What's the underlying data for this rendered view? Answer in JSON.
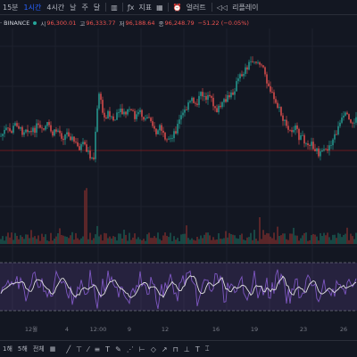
{
  "toolbar": {
    "intervals": [
      "15분",
      "1시간",
      "4시간",
      "날",
      "주",
      "달"
    ],
    "active_interval": "1시간",
    "indicators_label": "지표",
    "alert_label": "얼러트",
    "replay_label": "리플레이"
  },
  "legend": {
    "symbol": "· BINANCE",
    "open_label": "시",
    "open_value": "96,300.01",
    "high_label": "고",
    "high_value": "96,333.77",
    "low_label": "저",
    "low_value": "96,188.64",
    "close_label": "종",
    "close_value": "96,248.79",
    "change": "−51.22 (−0.05%)"
  },
  "chart_data": {
    "type": "candlestick",
    "x_ticks": [
      "12월",
      "4",
      "12:00",
      "9",
      "12",
      "16",
      "19",
      "23",
      "26"
    ],
    "price_path": [
      0.73,
      0.68,
      0.7,
      0.62,
      0.7,
      0.66,
      0.71,
      0.65,
      0.7,
      0.64,
      0.72,
      0.68,
      0.74,
      0.7,
      0.76,
      0.82,
      0.8,
      0.86,
      0.92,
      0.38,
      0.6,
      0.54,
      0.62,
      0.54,
      0.57,
      0.52,
      0.58,
      0.55,
      0.6,
      0.57,
      0.72,
      0.65,
      0.8,
      0.74,
      0.68,
      0.58,
      0.52,
      0.45,
      0.48,
      0.4,
      0.43,
      0.46,
      0.53,
      0.49,
      0.44,
      0.4,
      0.3,
      0.24,
      0.18,
      0.13,
      0.16,
      0.22,
      0.33,
      0.45,
      0.52,
      0.62,
      0.7,
      0.66,
      0.74,
      0.76,
      0.78,
      0.82,
      0.88,
      0.85,
      0.79,
      0.72,
      0.62,
      0.57,
      0.64,
      0.6
    ],
    "rsi_path": [
      0.55,
      0.35,
      0.62,
      0.4,
      0.7,
      0.45,
      0.3,
      0.58,
      0.68,
      0.4,
      0.25,
      0.55,
      0.75,
      0.4,
      0.6,
      0.3,
      0.8,
      0.5,
      0.35,
      0.65,
      0.42,
      0.72,
      0.5,
      0.3,
      0.62,
      0.45,
      0.78,
      0.55,
      0.35,
      0.68,
      0.48,
      0.25,
      0.6,
      0.72,
      0.4,
      0.55,
      0.3,
      0.65,
      0.5,
      0.75,
      0.4,
      0.58,
      0.35,
      0.7,
      0.45,
      0.62,
      0.3,
      0.55,
      0.78,
      0.42,
      0.66,
      0.35,
      0.58,
      0.72,
      0.45,
      0.62,
      0.38,
      0.7,
      0.5,
      0.25
    ]
  },
  "bottombar": {
    "ranges": [
      "1해",
      "5해",
      "전체"
    ]
  }
}
